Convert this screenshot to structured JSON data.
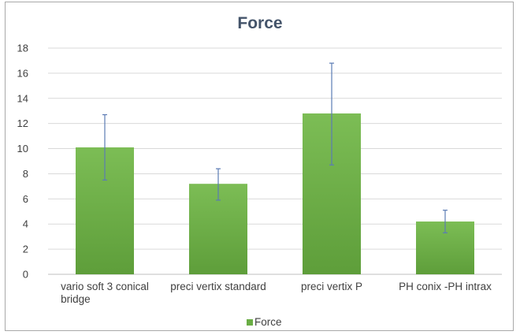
{
  "chart_data": {
    "type": "bar",
    "title": "Force",
    "xlabel": "",
    "ylabel": "",
    "ylim": [
      0,
      18
    ],
    "yticks": [
      0,
      2,
      4,
      6,
      8,
      10,
      12,
      14,
      16,
      18
    ],
    "categories": [
      [
        "vario soft 3 conical",
        "bridge"
      ],
      [
        "preci vertix standard"
      ],
      [
        "preci vertix P"
      ],
      [
        "PH conix -PH intrax"
      ]
    ],
    "series": [
      {
        "name": "Force",
        "values": [
          10.1,
          7.2,
          12.8,
          4.2
        ],
        "error_low": [
          7.5,
          5.9,
          8.7,
          3.3
        ],
        "error_high": [
          12.7,
          8.4,
          16.8,
          5.1
        ],
        "color": "#6aad45"
      }
    ],
    "grid": true,
    "legend": "bottom"
  }
}
